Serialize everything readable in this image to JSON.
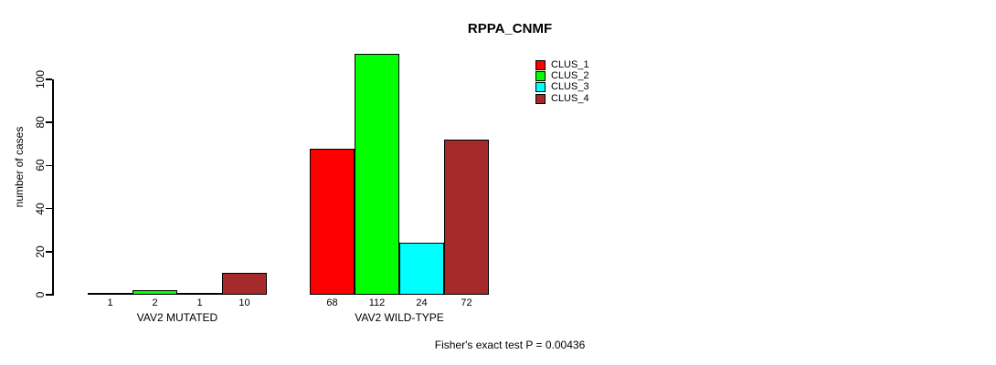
{
  "chart_data": {
    "type": "bar",
    "title": "RPPA_CNMF",
    "ylabel": "number of cases",
    "ylim": [
      0,
      112
    ],
    "yticks": [
      0,
      20,
      40,
      60,
      80,
      100
    ],
    "series": [
      {
        "name": "CLUS_1",
        "color": "#FF0000"
      },
      {
        "name": "CLUS_2",
        "color": "#00FF00"
      },
      {
        "name": "CLUS_3",
        "color": "#00FFFF"
      },
      {
        "name": "CLUS_4",
        "color": "#A52A2A"
      }
    ],
    "groups": [
      {
        "label": "VAV2 MUTATED",
        "values": [
          1,
          2,
          1,
          10
        ]
      },
      {
        "label": "VAV2 WILD-TYPE",
        "values": [
          68,
          112,
          24,
          72
        ]
      }
    ],
    "bar_value_labels": [
      [
        "1",
        "2",
        "1",
        "10"
      ],
      [
        "68",
        "112",
        "24",
        "72"
      ]
    ],
    "annotation": "Fisher's exact test P = 0.00436",
    "legend_position": "top-right",
    "grid": false,
    "background_color": "#FFFFFF",
    "axis_color": "#000000",
    "text_color": "#000000"
  }
}
